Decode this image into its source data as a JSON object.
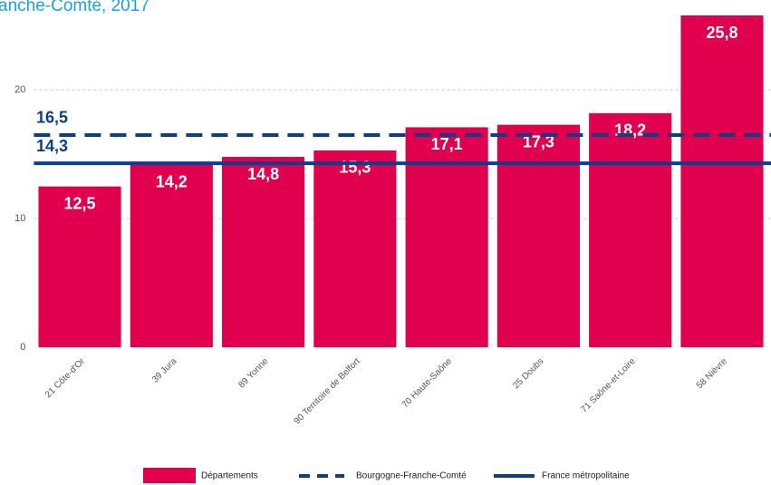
{
  "chart_data": {
    "type": "bar",
    "title": "anche-Comté, 2017",
    "categories": [
      "21 Côte-d'Or",
      "39 Jura",
      "89 Yonne",
      "90 Territoire de Belfort",
      "70 Haute-Saône",
      "25 Doubs",
      "71 Saône-et-Loire",
      "58 Nièvre"
    ],
    "series": [
      {
        "name": "Départements",
        "color": "#e0004d",
        "values": [
          12.5,
          14.2,
          14.8,
          15.3,
          17.1,
          17.3,
          18.2,
          25.8
        ],
        "value_labels": [
          "12,5",
          "14,2",
          "14,8",
          "15,3",
          "17,1",
          "17,3",
          "18,2",
          "25,8"
        ]
      }
    ],
    "reference_lines": [
      {
        "name": "Bourgogne-Franche-Comté",
        "value": 16.5,
        "label": "16,5",
        "style": "dashed",
        "color": "#0b3f8c"
      },
      {
        "name": "France métropolitaine",
        "value": 14.3,
        "label": "14,3",
        "style": "solid",
        "color": "#0b3f8c"
      }
    ],
    "ylim": [
      0,
      27
    ],
    "yticks": [
      0,
      10,
      20
    ],
    "grid": true
  }
}
